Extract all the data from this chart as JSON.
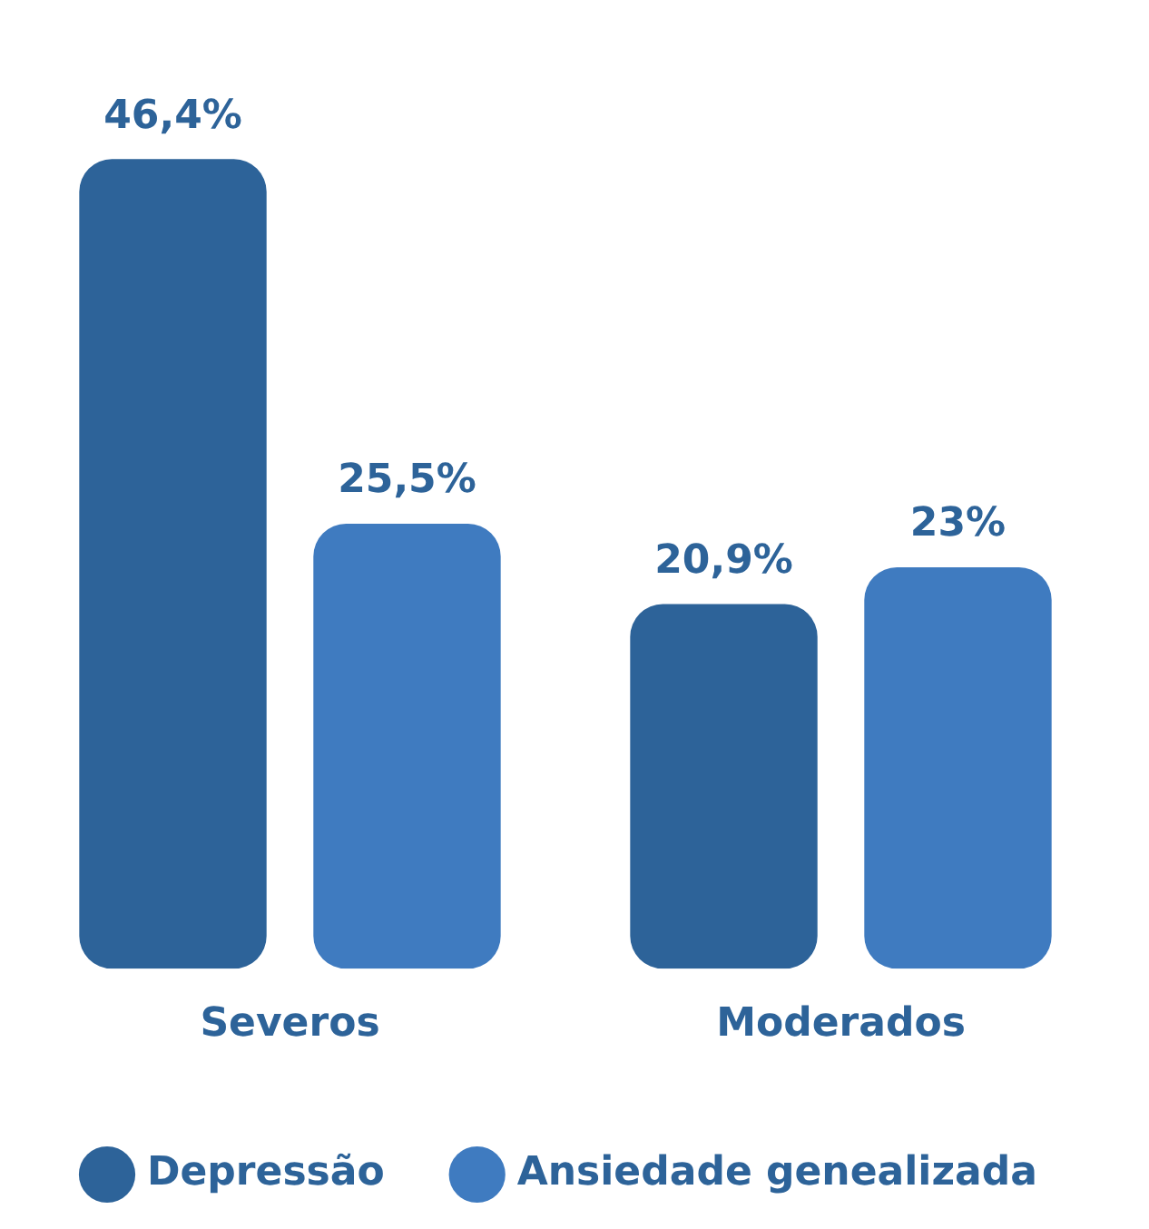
{
  "chart_data": {
    "type": "bar",
    "categories": [
      "Severos",
      "Moderados"
    ],
    "series": [
      {
        "name": "Depressão",
        "color": "#2d6399",
        "values": [
          46.4,
          20.9
        ],
        "value_labels": [
          "46,4%",
          "20,9%"
        ]
      },
      {
        "name": "Ansiedade genealizada",
        "color": "#3f7bc0",
        "values": [
          25.5,
          23
        ],
        "value_labels": [
          "25,5%",
          "23%"
        ]
      }
    ],
    "grid": false,
    "legend": "bottom left"
  }
}
